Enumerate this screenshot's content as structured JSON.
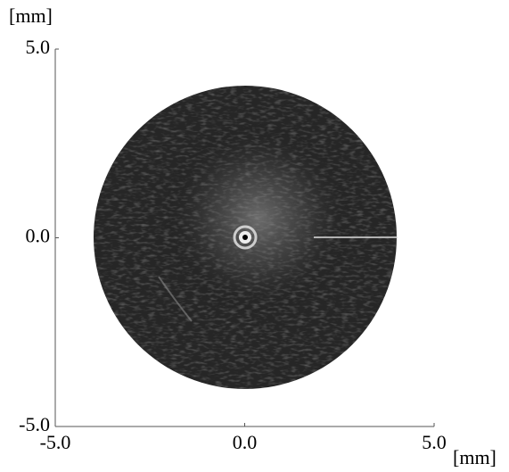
{
  "chart_data": {
    "type": "image",
    "x_label": "[mm]",
    "y_label": "[mm]",
    "xlim": [
      -5,
      5
    ],
    "ylim": [
      -5,
      5
    ],
    "xticks": [
      {
        "value": -5,
        "label": "-5.0"
      },
      {
        "value": 0,
        "label": "0.0"
      },
      {
        "value": 5,
        "label": "5.0"
      }
    ],
    "yticks": [
      {
        "value": -5,
        "label": "-5.0"
      },
      {
        "value": 0,
        "label": "0.0"
      },
      {
        "value": 5,
        "label": "5.0"
      }
    ]
  }
}
